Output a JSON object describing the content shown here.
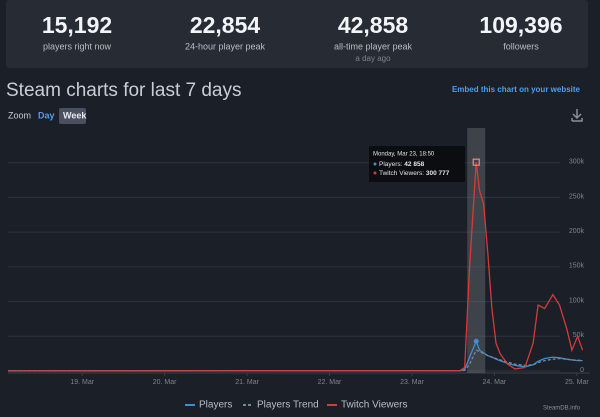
{
  "stats": [
    {
      "value": "15,192",
      "label": "players right now"
    },
    {
      "value": "22,854",
      "label": "24-hour player peak"
    },
    {
      "value": "42,858",
      "label": "all-time player peak",
      "note": "a day ago"
    },
    {
      "value": "109,396",
      "label": "followers"
    }
  ],
  "header": {
    "title": "Steam charts for last 7 days",
    "embed": "Embed this chart on your website",
    "zoom": "Zoom",
    "zoom_options": [
      "Day",
      "Week"
    ]
  },
  "footer": "SteamDB.info",
  "chart_data": {
    "type": "line",
    "tooltip": {
      "date": "Monday, Mar 23, 18:50",
      "players_label": "Players: ",
      "players_value": "42 858",
      "twitch_label": "Twitch Viewers: ",
      "twitch_value": "300 777"
    },
    "x": [
      18.1,
      23.58,
      23.64,
      23.7,
      23.78,
      23.82,
      23.87,
      23.92,
      23.97,
      24.02,
      24.07,
      24.16,
      24.25,
      24.37,
      24.47,
      24.53,
      24.61,
      24.71,
      24.79,
      24.88,
      24.94,
      25.01,
      25.07
    ],
    "series": [
      {
        "name": "Players",
        "color": "#3d8fd1",
        "dash": false,
        "values": [
          300,
          600,
          2000,
          20000,
          42858,
          30000,
          26000,
          22000,
          20000,
          17000,
          15000,
          11000,
          8000,
          6000,
          9000,
          14000,
          18000,
          20000,
          19000,
          17000,
          16000,
          15000,
          15000
        ]
      },
      {
        "name": "Players Trend",
        "color": "#7a8696",
        "dash": true,
        "values": [
          300,
          400,
          1000,
          10000,
          30000,
          28000,
          25000,
          22000,
          20000,
          18000,
          16000,
          13000,
          10000,
          8000,
          9000,
          12000,
          15000,
          17000,
          18000,
          17000,
          16000,
          15500,
          15000
        ]
      },
      {
        "name": "Twitch Viewers",
        "color": "#d63a3a",
        "dash": false,
        "values": [
          0,
          500,
          5000,
          150000,
          300777,
          260000,
          240000,
          170000,
          90000,
          40000,
          25000,
          10000,
          3000,
          5000,
          40000,
          95000,
          90000,
          110000,
          95000,
          60000,
          30000,
          50000,
          30000
        ]
      }
    ],
    "xlim": [
      18.1,
      25.16
    ],
    "xticks": [
      {
        "value": 19,
        "label": "19. Mar"
      },
      {
        "value": 20,
        "label": "20. Mar"
      },
      {
        "value": 21,
        "label": "21. Mar"
      },
      {
        "value": 22,
        "label": "22. Mar"
      },
      {
        "value": 23,
        "label": "23. Mar"
      },
      {
        "value": 24,
        "label": "24. Mar"
      },
      {
        "value": 25,
        "label": "25. Mar"
      }
    ],
    "ylim": [
      0,
      350000
    ],
    "yticks": [
      0,
      {
        "value": 50000,
        "label": "50k"
      },
      {
        "value": 100000,
        "label": "100k"
      },
      {
        "value": 150000,
        "label": "150k"
      },
      {
        "value": 200000,
        "label": "200k"
      },
      {
        "value": 250000,
        "label": "250k"
      },
      {
        "value": 300000,
        "label": "300k"
      }
    ],
    "grid": true
  }
}
